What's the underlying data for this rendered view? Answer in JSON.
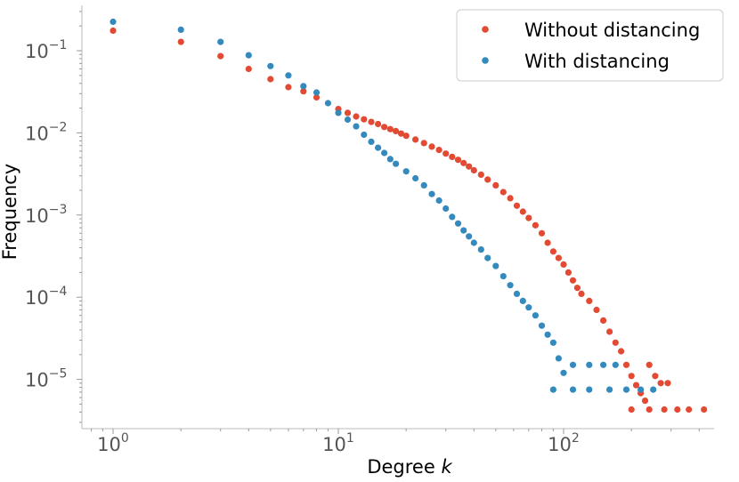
{
  "chart_data": {
    "type": "scatter",
    "xscale": "log",
    "yscale": "log",
    "xlim": [
      0.8,
      450
    ],
    "ylim": [
      3e-06,
      0.4
    ],
    "xlabel": "Degree",
    "xlabel_var": "k",
    "ylabel": "Frequency",
    "grid": false,
    "legend_position": "top-right",
    "x_ticks": [
      {
        "value": 1,
        "base": "10",
        "exp": "0"
      },
      {
        "value": 10,
        "base": "10",
        "exp": "1"
      },
      {
        "value": 100,
        "base": "10",
        "exp": "2"
      }
    ],
    "y_ticks": [
      {
        "value": 1e-05,
        "base": "10",
        "exp": "−5"
      },
      {
        "value": 0.0001,
        "base": "10",
        "exp": "−4"
      },
      {
        "value": 0.001,
        "base": "10",
        "exp": "−3"
      },
      {
        "value": 0.01,
        "base": "10",
        "exp": "−2"
      },
      {
        "value": 0.1,
        "base": "10",
        "exp": "−1"
      }
    ],
    "series": [
      {
        "name": "Without distancing",
        "color": "#E24A33",
        "points": [
          [
            1,
            0.175
          ],
          [
            2,
            0.128
          ],
          [
            3,
            0.086
          ],
          [
            4,
            0.06
          ],
          [
            5,
            0.045
          ],
          [
            6,
            0.036
          ],
          [
            7,
            0.032
          ],
          [
            8,
            0.027
          ],
          [
            10,
            0.0195
          ],
          [
            11,
            0.0175
          ],
          [
            12,
            0.0158
          ],
          [
            13,
            0.0146
          ],
          [
            14,
            0.0136
          ],
          [
            15,
            0.0128
          ],
          [
            16,
            0.0118
          ],
          [
            17,
            0.0111
          ],
          [
            18,
            0.0105
          ],
          [
            19,
            0.0098
          ],
          [
            20,
            0.0092
          ],
          [
            22,
            0.0083
          ],
          [
            24,
            0.0075
          ],
          [
            26,
            0.0068
          ],
          [
            28,
            0.0062
          ],
          [
            30,
            0.0056
          ],
          [
            32,
            0.0051
          ],
          [
            34,
            0.0047
          ],
          [
            36,
            0.0043
          ],
          [
            38,
            0.0039
          ],
          [
            40,
            0.0035
          ],
          [
            43,
            0.0031
          ],
          [
            46,
            0.0027
          ],
          [
            50,
            0.0023
          ],
          [
            54,
            0.0019
          ],
          [
            58,
            0.0016
          ],
          [
            62,
            0.0013
          ],
          [
            66,
            0.0011
          ],
          [
            70,
            0.00092
          ],
          [
            75,
            0.00075
          ],
          [
            80,
            0.0006
          ],
          [
            85,
            0.00046
          ],
          [
            90,
            0.00036
          ],
          [
            95,
            0.0003
          ],
          [
            100,
            0.00025
          ],
          [
            105,
            0.0002
          ],
          [
            110,
            0.00016
          ],
          [
            115,
            0.00013
          ],
          [
            120,
            0.00011
          ],
          [
            130,
            9e-05
          ],
          [
            140,
            7e-05
          ],
          [
            150,
            5.2e-05
          ],
          [
            160,
            3.8e-05
          ],
          [
            170,
            2.8e-05
          ],
          [
            180,
            2.2e-05
          ],
          [
            190,
            1.5e-05
          ],
          [
            200,
            1.1e-05
          ],
          [
            210,
            8.5e-06
          ],
          [
            220,
            6.8e-06
          ],
          [
            230,
            5.5e-06
          ],
          [
            240,
            1.5e-05
          ],
          [
            255,
            1.1e-05
          ],
          [
            270,
            9e-06
          ],
          [
            290,
            9e-06
          ],
          [
            200,
            4.3e-06
          ],
          [
            240,
            4.3e-06
          ],
          [
            280,
            4.3e-06
          ],
          [
            320,
            4.3e-06
          ],
          [
            360,
            4.3e-06
          ],
          [
            420,
            4.3e-06
          ]
        ]
      },
      {
        "name": "With distancing",
        "color": "#348ABD",
        "points": [
          [
            1,
            0.225
          ],
          [
            2,
            0.18
          ],
          [
            3,
            0.128
          ],
          [
            4,
            0.088
          ],
          [
            5,
            0.065
          ],
          [
            6,
            0.05
          ],
          [
            7,
            0.037
          ],
          [
            8,
            0.031
          ],
          [
            9,
            0.023
          ],
          [
            10,
            0.0175
          ],
          [
            11,
            0.0145
          ],
          [
            12,
            0.012
          ],
          [
            13,
            0.0095
          ],
          [
            14,
            0.0078
          ],
          [
            15,
            0.0066
          ],
          [
            16,
            0.0057
          ],
          [
            17,
            0.0048
          ],
          [
            18,
            0.0042
          ],
          [
            20,
            0.0034
          ],
          [
            22,
            0.0028
          ],
          [
            24,
            0.0023
          ],
          [
            26,
            0.0018
          ],
          [
            28,
            0.0015
          ],
          [
            30,
            0.0012
          ],
          [
            32,
            0.00095
          ],
          [
            34,
            0.00079
          ],
          [
            36,
            0.00065
          ],
          [
            38,
            0.00055
          ],
          [
            40,
            0.00046
          ],
          [
            43,
            0.00038
          ],
          [
            46,
            0.0003
          ],
          [
            50,
            0.00024
          ],
          [
            54,
            0.00018
          ],
          [
            58,
            0.00014
          ],
          [
            62,
            0.00011
          ],
          [
            66,
            9e-05
          ],
          [
            70,
            7.5e-05
          ],
          [
            75,
            6e-05
          ],
          [
            80,
            4.5e-05
          ],
          [
            85,
            3.5e-05
          ],
          [
            90,
            2.8e-05
          ],
          [
            95,
            1.8e-05
          ],
          [
            100,
            1.2e-05
          ],
          [
            110,
            1.5e-05
          ],
          [
            130,
            1.5e-05
          ],
          [
            150,
            1.5e-05
          ],
          [
            170,
            1.5e-05
          ],
          [
            90,
            7.5e-06
          ],
          [
            110,
            7.5e-06
          ],
          [
            130,
            7.5e-06
          ],
          [
            160,
            7.5e-06
          ],
          [
            190,
            7.5e-06
          ],
          [
            220,
            7.5e-06
          ],
          [
            250,
            7.5e-06
          ]
        ]
      }
    ]
  }
}
